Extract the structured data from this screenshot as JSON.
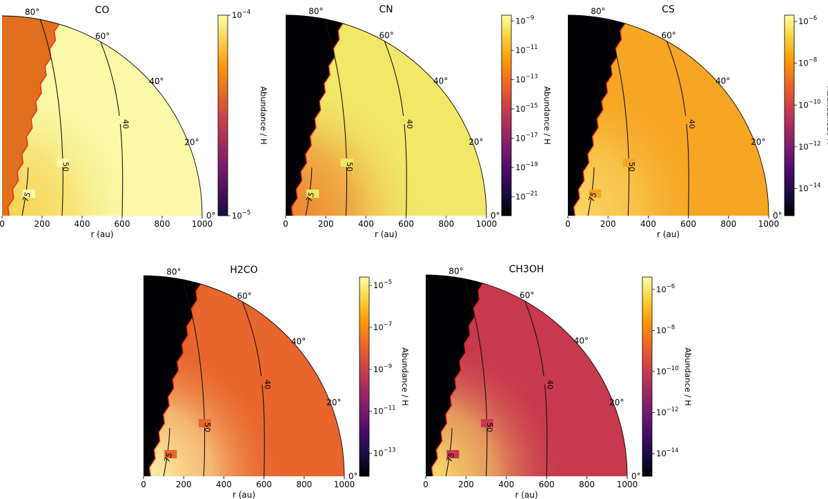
{
  "chart_data": [
    {
      "type": "heatmap",
      "title": "CO",
      "xlabel": "r (au)",
      "xticks": [
        "0",
        "200",
        "400",
        "600",
        "800",
        "1000"
      ],
      "xlim": [
        0,
        1000
      ],
      "angle_labels": [
        "80°",
        "60°",
        "40°",
        "20°",
        "0°"
      ],
      "colorbar_label": "Abundance / H",
      "colorbar_ticks": [
        {
          "base": "10",
          "exp": "−4",
          "exponent": -4
        },
        {
          "base": "10",
          "exp": "−5",
          "exponent": -5
        }
      ],
      "colorbar_range_log10": [
        -5,
        -4
      ],
      "contour_levels": [
        "75",
        "50",
        "40"
      ],
      "colors": {
        "outflow": "#e0701e",
        "envelope": "#f9f9a8",
        "inner": "#f6d14e"
      }
    },
    {
      "type": "heatmap",
      "title": "CN",
      "xlabel": "r (au)",
      "xticks": [
        "0",
        "200",
        "400",
        "600",
        "800",
        "1000"
      ],
      "xlim": [
        0,
        1000
      ],
      "angle_labels": [
        "80°",
        "60°",
        "40°",
        "20°",
        "0°"
      ],
      "colorbar_label": "Abundance / H",
      "colorbar_ticks": [
        {
          "base": "10",
          "exp": "−9",
          "exponent": -9
        },
        {
          "base": "10",
          "exp": "−11",
          "exponent": -11
        },
        {
          "base": "10",
          "exp": "−13",
          "exponent": -13
        },
        {
          "base": "10",
          "exp": "−15",
          "exponent": -15
        },
        {
          "base": "10",
          "exp": "−17",
          "exponent": -17
        },
        {
          "base": "10",
          "exp": "−19",
          "exponent": -19
        },
        {
          "base": "10",
          "exp": "−21",
          "exponent": -21
        }
      ],
      "colorbar_range_log10": [
        -22.3,
        -8.6
      ],
      "contour_levels": [
        "75",
        "50",
        "40"
      ],
      "colors": {
        "outflow": "#000004",
        "envelope": "#f1e867",
        "inner": "#ee7f2e"
      }
    },
    {
      "type": "heatmap",
      "title": "CS",
      "xlabel": "r (au)",
      "xticks": [
        "0",
        "200",
        "400",
        "600",
        "800",
        "1000"
      ],
      "xlim": [
        0,
        1000
      ],
      "angle_labels": [
        "80°",
        "60°",
        "40°",
        "20°",
        "0°"
      ],
      "colorbar_label": "Abundance / H",
      "colorbar_ticks": [
        {
          "base": "10",
          "exp": "−6",
          "exponent": -6
        },
        {
          "base": "10",
          "exp": "−8",
          "exponent": -8
        },
        {
          "base": "10",
          "exp": "−10",
          "exponent": -10
        },
        {
          "base": "10",
          "exp": "−12",
          "exponent": -12
        },
        {
          "base": "10",
          "exp": "−14",
          "exponent": -14
        }
      ],
      "colorbar_range_log10": [
        -15.3,
        -5.7
      ],
      "contour_levels": [
        "75",
        "50",
        "40"
      ],
      "colors": {
        "outflow": "#000004",
        "envelope": "#f6a623",
        "inner": "#fad867"
      }
    },
    {
      "type": "heatmap",
      "title": "H2CO",
      "xlabel": "r (au)",
      "xticks": [
        "0",
        "200",
        "400",
        "600",
        "800",
        "1000"
      ],
      "xlim": [
        0,
        1000
      ],
      "angle_labels": [
        "80°",
        "60°",
        "40°",
        "20°",
        "0°"
      ],
      "colorbar_label": "Abundance / H",
      "colorbar_ticks": [
        {
          "base": "10",
          "exp": "−5",
          "exponent": -5
        },
        {
          "base": "10",
          "exp": "−7",
          "exponent": -7
        },
        {
          "base": "10",
          "exp": "−9",
          "exponent": -9
        },
        {
          "base": "10",
          "exp": "−11",
          "exponent": -11
        },
        {
          "base": "10",
          "exp": "−13",
          "exponent": -13
        }
      ],
      "colorbar_range_log10": [
        -14.1,
        -4.6
      ],
      "contour_levels": [
        "75",
        "50",
        "40"
      ],
      "colors": {
        "outflow": "#000004",
        "envelope": "#e8652c",
        "inner": "#fdf5a8"
      }
    },
    {
      "type": "heatmap",
      "title": "CH3OH",
      "xlabel": "r (au)",
      "xticks": [
        "0",
        "200",
        "400",
        "600",
        "800",
        "1000"
      ],
      "xlim": [
        0,
        1000
      ],
      "angle_labels": [
        "80°",
        "60°",
        "40°",
        "20°",
        "0°"
      ],
      "colorbar_label": "Abundance / H",
      "colorbar_ticks": [
        {
          "base": "10",
          "exp": "−6",
          "exponent": -6
        },
        {
          "base": "10",
          "exp": "−8",
          "exponent": -8
        },
        {
          "base": "10",
          "exp": "−10",
          "exponent": -10
        },
        {
          "base": "10",
          "exp": "−12",
          "exponent": -12
        },
        {
          "base": "10",
          "exp": "−14",
          "exponent": -14
        }
      ],
      "colorbar_range_log10": [
        -15.1,
        -5.4
      ],
      "contour_levels": [
        "75",
        "50",
        "40"
      ],
      "colors": {
        "outflow": "#000004",
        "envelope": "#c8384e",
        "inner": "#fbe16a"
      }
    }
  ]
}
